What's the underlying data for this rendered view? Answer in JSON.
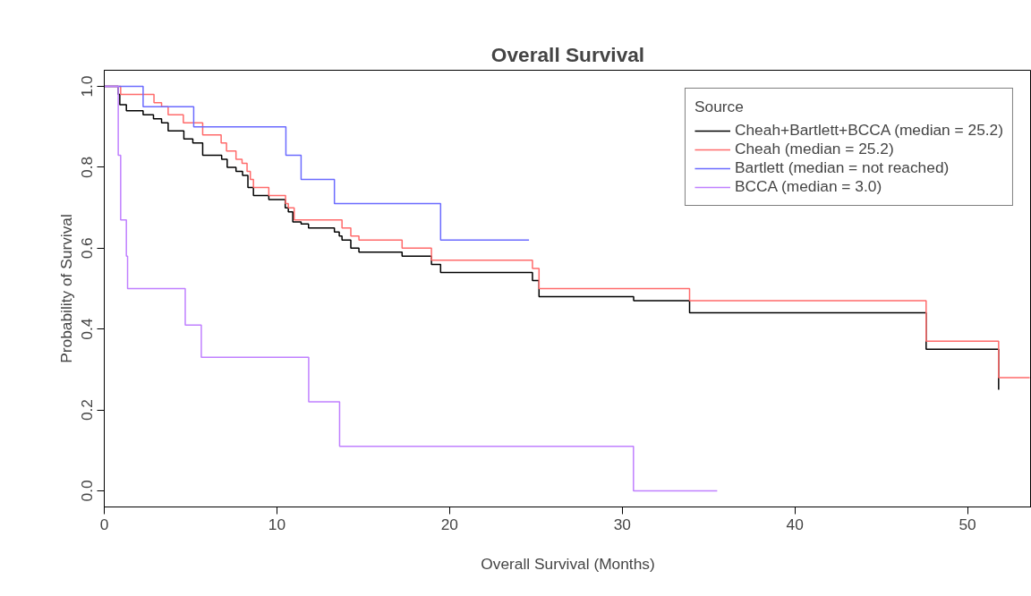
{
  "chart_data": {
    "type": "step",
    "title": "Overall Survival",
    "xlabel": "Overall Survival (Months)",
    "ylabel": "Probability of Survival",
    "legend_title": "Source",
    "legend": "top right",
    "grid": false,
    "xlim": [
      0,
      53.7
    ],
    "ylim": [
      -0.04,
      1.04
    ],
    "xticks": [
      0,
      10,
      20,
      30,
      40,
      50
    ],
    "yticks": [
      {
        "value": 0,
        "label": "0.0"
      },
      {
        "value": 0.2,
        "label": "0.2"
      },
      {
        "value": 0.4,
        "label": "0.4"
      },
      {
        "value": 0.6,
        "label": "0.6"
      },
      {
        "value": 0.8,
        "label": "0.8"
      },
      {
        "value": 1,
        "label": "1.0"
      }
    ],
    "series": [
      {
        "name": "Cheah+Bartlett+BCCA (median = 25.2)",
        "color": "#000000",
        "x": [
          0,
          0.81,
          0.9,
          1.28,
          2.25,
          2.85,
          3.32,
          3.7,
          4.61,
          5.13,
          5.7,
          6.8,
          7.12,
          7.63,
          8.01,
          8.32,
          8.64,
          9.53,
          10.48,
          10.66,
          10.92,
          11.4,
          11.83,
          13.33,
          13.61,
          13.77,
          14.28,
          14.75,
          17.25,
          18.95,
          19.48,
          24.8,
          25.18,
          30.66,
          33.9,
          47.6,
          51.8
        ],
        "values": [
          1.0,
          0.98,
          0.955,
          0.94,
          0.93,
          0.92,
          0.91,
          0.89,
          0.87,
          0.86,
          0.83,
          0.82,
          0.8,
          0.79,
          0.78,
          0.75,
          0.73,
          0.72,
          0.7,
          0.69,
          0.665,
          0.66,
          0.65,
          0.64,
          0.63,
          0.62,
          0.6,
          0.59,
          0.58,
          0.56,
          0.54,
          0.52,
          0.48,
          0.47,
          0.44,
          0.35,
          0.25
        ]
      },
      {
        "name": "Cheah (median = 25.2)",
        "color": "#ff6b6b",
        "x": [
          0,
          0.95,
          2.88,
          3.32,
          3.7,
          4.58,
          5.7,
          6.77,
          7.08,
          7.63,
          7.98,
          8.27,
          8.46,
          8.64,
          9.53,
          10.5,
          10.66,
          11.0,
          13.77,
          14.28,
          14.75,
          17.25,
          18.95,
          24.8,
          25.18,
          33.9,
          47.6,
          51.8,
          53.6
        ],
        "values": [
          1.0,
          0.98,
          0.96,
          0.95,
          0.93,
          0.91,
          0.88,
          0.86,
          0.84,
          0.82,
          0.81,
          0.79,
          0.77,
          0.75,
          0.73,
          0.71,
          0.7,
          0.67,
          0.65,
          0.63,
          0.62,
          0.6,
          0.57,
          0.55,
          0.5,
          0.47,
          0.37,
          0.28,
          0.28
        ]
      },
      {
        "name": "Bartlett (median = not reached)",
        "color": "#6b6bff",
        "x": [
          0,
          2.25,
          5.18,
          10.52,
          11.4,
          13.33,
          19.48,
          24.6
        ],
        "values": [
          1.0,
          0.95,
          0.9,
          0.83,
          0.77,
          0.71,
          0.62,
          0.62
        ]
      },
      {
        "name": "BCCA (median = 3.0)",
        "color": "#c080ff",
        "x": [
          0,
          0.81,
          0.95,
          1.28,
          1.35,
          4.69,
          5.62,
          11.84,
          13.63,
          30.65,
          35.5
        ],
        "values": [
          1.0,
          0.83,
          0.67,
          0.58,
          0.5,
          0.41,
          0.33,
          0.22,
          0.11,
          0.0,
          0.0
        ]
      }
    ]
  }
}
